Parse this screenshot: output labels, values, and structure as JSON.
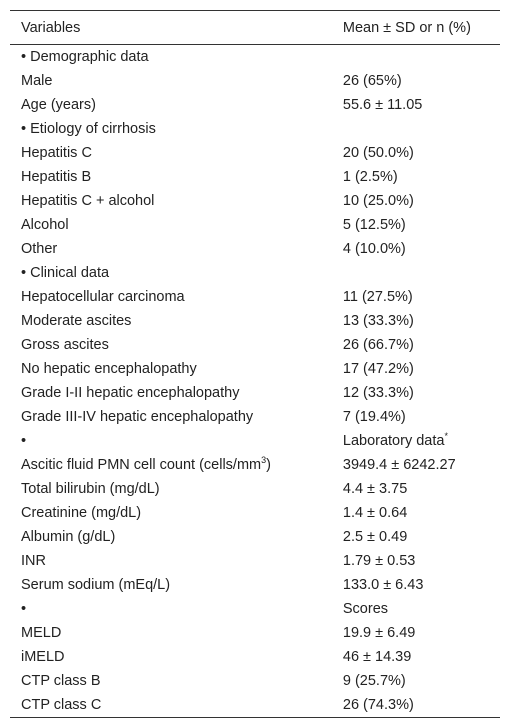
{
  "table": {
    "header": [
      "Variables",
      "Mean ± SD or n (%)"
    ],
    "rows": [
      [
        "• Demographic data",
        ""
      ],
      [
        "Male",
        "26 (65%)"
      ],
      [
        "Age (years)",
        "55.6 ± 11.05"
      ],
      [
        "• Etiology of cirrhosis",
        ""
      ],
      [
        "Hepatitis C",
        "20 (50.0%)"
      ],
      [
        "Hepatitis B",
        "1 (2.5%)"
      ],
      [
        "Hepatitis C + alcohol",
        "10 (25.0%)"
      ],
      [
        "Alcohol",
        "5 (12.5%)"
      ],
      [
        "Other",
        "4 (10.0%)"
      ],
      [
        "• Clinical data",
        ""
      ],
      [
        "Hepatocellular carcinoma",
        "11 (27.5%)"
      ],
      [
        "Moderate ascites",
        "13 (33.3%)"
      ],
      [
        "Gross ascites",
        "26 (66.7%)"
      ],
      [
        "No hepatic encephalopathy",
        "17 (47.2%)"
      ],
      [
        "Grade I-II hepatic encephalopathy",
        "12 (33.3%)"
      ],
      [
        "Grade III-IV hepatic encephalopathy",
        "7 (19.4%)"
      ],
      [
        "•",
        {
          "text": "Laboratory data",
          "sup": "*"
        }
      ],
      [
        {
          "text": "Ascitic fluid PMN cell count (cells/mm",
          "sup": "3",
          "tail": ")"
        },
        "3949.4 ± 6242.27"
      ],
      [
        "Total bilirubin (mg/dL)",
        "4.4 ± 3.75"
      ],
      [
        "Creatinine (mg/dL)",
        "1.4 ± 0.64"
      ],
      [
        "Albumin (g/dL)",
        "2.5 ± 0.49"
      ],
      [
        "INR",
        "1.79 ± 0.53"
      ],
      [
        "Serum sodium (mEq/L)",
        "133.0 ± 6.43"
      ],
      [
        "•",
        "Scores"
      ],
      [
        "MELD",
        "19.9 ± 6.49"
      ],
      [
        "iMELD",
        "46 ± 14.39"
      ],
      [
        "CTP class B",
        "9 (25.7%)"
      ],
      [
        "CTP class C",
        "26 (74.3%)"
      ]
    ]
  }
}
